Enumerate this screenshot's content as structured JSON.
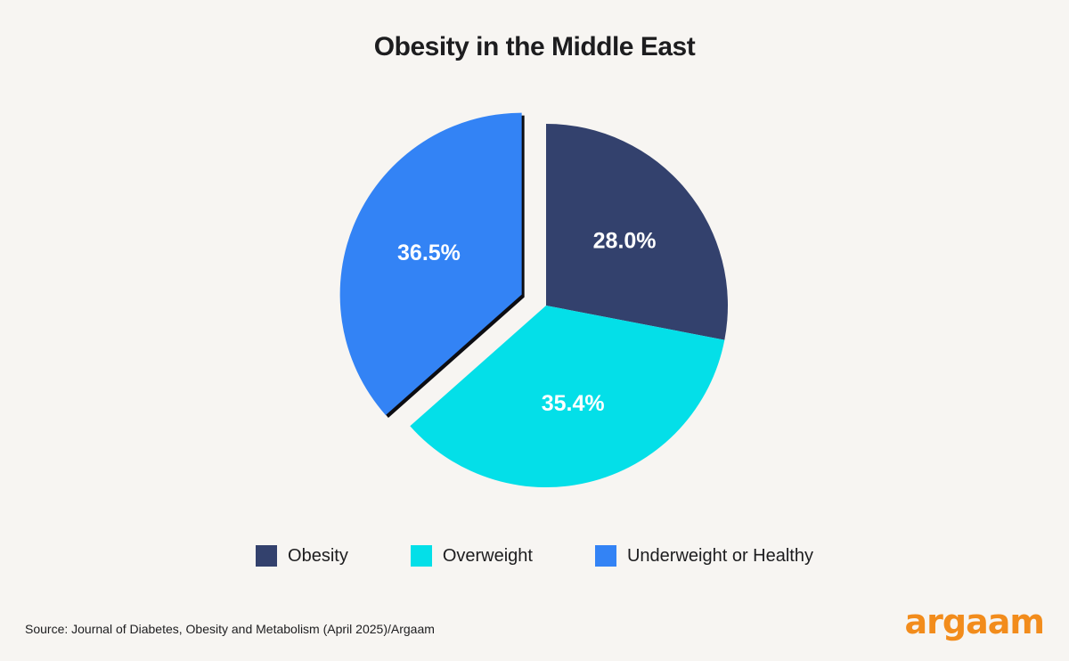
{
  "title": "Obesity in the Middle East",
  "chart_data": {
    "type": "pie",
    "title": "Obesity in the Middle East",
    "slices": [
      {
        "name": "Obesity",
        "value": 28.0,
        "label": "28.0%",
        "color": "#33416d",
        "exploded": false
      },
      {
        "name": "Overweight",
        "value": 35.4,
        "label": "35.4%",
        "color": "#04dfe8",
        "exploded": false
      },
      {
        "name": "Underweight or Healthy",
        "value": 36.5,
        "label": "36.5%",
        "color": "#3383f5",
        "exploded": true
      }
    ],
    "legend_position": "bottom"
  },
  "source": "Source: Journal of Diabetes, Obesity and Metabolism (April 2025)/Argaam",
  "brand": "argaam",
  "colors": {
    "background": "#f7f5f2",
    "brand": "#f28c1c"
  }
}
